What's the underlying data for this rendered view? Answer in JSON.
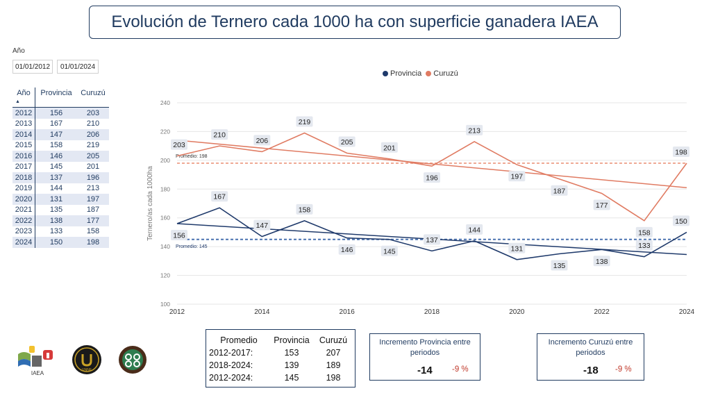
{
  "title": "Evolución de Ternero cada 1000 ha con superficie ganadera IAEA",
  "filters": {
    "label": "Año",
    "from": "01/01/2012",
    "to": "01/01/2024"
  },
  "colors": {
    "provincia": "#1f3a6b",
    "curuzu": "#e07b62",
    "title": "#1f3a5f",
    "negative": "#c0392b"
  },
  "table": {
    "headers": [
      "Año",
      "Provincia",
      "Curuzú"
    ],
    "rows": [
      [
        "2012",
        "156",
        "203"
      ],
      [
        "2013",
        "167",
        "210"
      ],
      [
        "2014",
        "147",
        "206"
      ],
      [
        "2015",
        "158",
        "219"
      ],
      [
        "2016",
        "146",
        "205"
      ],
      [
        "2017",
        "145",
        "201"
      ],
      [
        "2018",
        "137",
        "196"
      ],
      [
        "2019",
        "144",
        "213"
      ],
      [
        "2020",
        "131",
        "197"
      ],
      [
        "2021",
        "135",
        "187"
      ],
      [
        "2022",
        "138",
        "177"
      ],
      [
        "2023",
        "133",
        "158"
      ],
      [
        "2024",
        "150",
        "198"
      ]
    ]
  },
  "chart_data": {
    "type": "line",
    "x": [
      2012,
      2013,
      2014,
      2015,
      2016,
      2017,
      2018,
      2019,
      2020,
      2021,
      2022,
      2023,
      2024
    ],
    "series": [
      {
        "name": "Provincia",
        "values": [
          156,
          167,
          147,
          158,
          146,
          145,
          137,
          144,
          131,
          135,
          138,
          133,
          150
        ]
      },
      {
        "name": "Curuzú",
        "values": [
          203,
          210,
          206,
          219,
          205,
          201,
          196,
          213,
          197,
          187,
          177,
          158,
          198
        ]
      }
    ],
    "trend": {
      "provincia": [
        156,
        134.5
      ],
      "curuzu": [
        214,
        181
      ]
    },
    "averages": {
      "provincia": 145,
      "curuzu": 198
    },
    "average_labels": {
      "provincia": "Promedio: 145",
      "curuzu": "Promedio: 198"
    },
    "ylabel": "Ternero/as cada 1000ha",
    "ylim": [
      100,
      240
    ],
    "yticks": [
      100,
      120,
      140,
      160,
      180,
      200,
      220,
      240
    ],
    "xticks": [
      2012,
      2014,
      2016,
      2018,
      2020,
      2022,
      2024
    ],
    "legend_position": "top-center",
    "grid": true
  },
  "averages_table": {
    "headers": [
      "Promedio",
      "Provincia",
      "Curuzú"
    ],
    "rows": [
      [
        "2012-2017:",
        "153",
        "207"
      ],
      [
        "2018-2024:",
        "139",
        "189"
      ],
      [
        "2012-2024:",
        "145",
        "198"
      ]
    ]
  },
  "cards": {
    "provincia": {
      "label": "Incremento Provincia entre periodos",
      "value": "-14",
      "pct": "-9 %"
    },
    "curuzu": {
      "label": "Incremento Curuzú entre periodos",
      "value": "-18",
      "pct": "-9 %"
    }
  },
  "logos": {
    "iaea": "IAEA",
    "unne": "UNNE"
  }
}
